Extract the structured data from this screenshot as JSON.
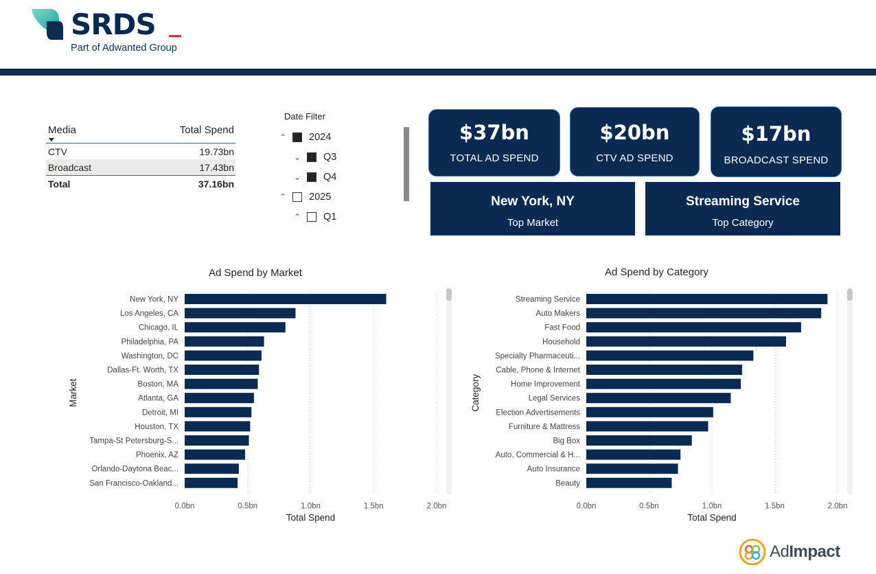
{
  "header": {
    "logo_text": "SRDS",
    "logo_sub": "Part of Adwanted Group",
    "brand_color": "#072a52",
    "accent_color": "#e3273d"
  },
  "media_table": {
    "col_media": "Media",
    "col_spend": "Total Spend",
    "rows": [
      {
        "media": "CTV",
        "spend": "19.73bn"
      },
      {
        "media": "Broadcast",
        "spend": "17.43bn"
      }
    ],
    "total_label": "Total",
    "total_value": "37.16bn"
  },
  "date_filter": {
    "title": "Date Filter",
    "items": [
      {
        "label": "2024",
        "checked": true,
        "chevron": "collapse"
      },
      {
        "label": "Q3",
        "checked": true,
        "chevron": "expand"
      },
      {
        "label": "Q4",
        "checked": true,
        "chevron": "expand"
      },
      {
        "label": "2025",
        "checked": false,
        "chevron": "collapse"
      },
      {
        "label": "Q1",
        "checked": false,
        "chevron": "collapse"
      }
    ]
  },
  "kpis": {
    "total": {
      "value": "$37bn",
      "label": "TOTAL AD SPEND"
    },
    "ctv": {
      "value": "$20bn",
      "label": "CTV AD SPEND"
    },
    "broadcast": {
      "value": "$17bn",
      "label": "BROADCAST SPEND"
    },
    "top_market": {
      "value": "New York, NY",
      "label": "Top Market"
    },
    "top_category": {
      "value": "Streaming Service",
      "label": "Top Category"
    },
    "card_color": "#0b2a52"
  },
  "chart_data": [
    {
      "type": "bar",
      "orientation": "horizontal",
      "title": "Ad Spend by Market",
      "xlabel": "Total Spend",
      "ylabel": "Market",
      "categories": [
        "New York, NY",
        "Los Angeles, CA",
        "Chicago, IL",
        "Philadelphia, PA",
        "Washington, DC",
        "Dallas-Ft. Worth, TX",
        "Boston, MA",
        "Atlanta, GA",
        "Detroit, MI",
        "Houston, TX",
        "Tampa-St Petersburg-S...",
        "Phoenix, AZ",
        "Orlando-Daytona Beac...",
        "San Francisco-Oakland..."
      ],
      "values": [
        1.6,
        0.88,
        0.8,
        0.63,
        0.61,
        0.59,
        0.58,
        0.55,
        0.53,
        0.52,
        0.51,
        0.48,
        0.43,
        0.42
      ],
      "xticks": [
        "0.0bn",
        "0.5bn",
        "1.0bn",
        "1.5bn",
        "2.0bn"
      ],
      "xlim": [
        0,
        2.0
      ],
      "grid": true,
      "bar_color": "#0b2a52"
    },
    {
      "type": "bar",
      "orientation": "horizontal",
      "title": "Ad Spend by Category",
      "xlabel": "Total Spend",
      "ylabel": "Category",
      "categories": [
        "Streaming Service",
        "Auto Makers",
        "Fast Food",
        "Household",
        "Specialty Pharmaceuti...",
        "Cable, Phone & Internet",
        "Home Improvement",
        "Legal Services",
        "Election Advertisements",
        "Furniture & Mattress",
        "Big Box",
        "Auto, Commercial & H...",
        "Auto Insurance",
        "Beauty"
      ],
      "values": [
        1.92,
        1.87,
        1.71,
        1.59,
        1.33,
        1.24,
        1.23,
        1.15,
        1.01,
        0.97,
        0.84,
        0.75,
        0.73,
        0.68
      ],
      "xticks": [
        "0.0bn",
        "0.5bn",
        "1.0bn",
        "1.5bn",
        "2.0bn"
      ],
      "xlim": [
        0,
        2.0
      ],
      "grid": true,
      "bar_color": "#0b2a52"
    }
  ],
  "footer": {
    "logo_light": "Ad",
    "logo_bold": "Impact"
  }
}
